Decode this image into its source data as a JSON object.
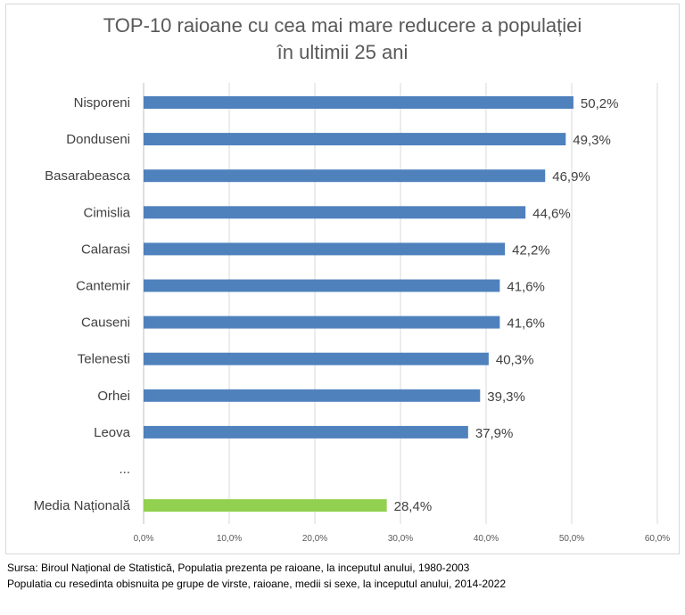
{
  "chart_data": {
    "type": "bar",
    "orientation": "horizontal",
    "title_line1": "TOP-10 raioane cu cea mai mare reducere a populației",
    "title_line2": "în ultimii 25 ani",
    "categories": [
      "Nisporeni",
      "Donduseni",
      "Basarabeasca",
      "Cimislia",
      "Calarasi",
      "Cantemir",
      "Causeni",
      "Telenesti",
      "Orhei",
      "Leova",
      "...",
      "Media Națională"
    ],
    "values": [
      50.2,
      49.3,
      46.9,
      44.6,
      42.2,
      41.6,
      41.6,
      40.3,
      39.3,
      37.9,
      null,
      28.4
    ],
    "value_labels": [
      "50,2%",
      "49,3%",
      "46,9%",
      "44,6%",
      "42,2%",
      "41,6%",
      "41,6%",
      "40,3%",
      "39,3%",
      "37,9%",
      "",
      "28,4%"
    ],
    "bar_colors": [
      "#4f81bd",
      "#4f81bd",
      "#4f81bd",
      "#4f81bd",
      "#4f81bd",
      "#4f81bd",
      "#4f81bd",
      "#4f81bd",
      "#4f81bd",
      "#4f81bd",
      "#4f81bd",
      "#92d050"
    ],
    "xlim": [
      0,
      60
    ],
    "x_ticks": [
      0,
      10,
      20,
      30,
      40,
      50,
      60
    ],
    "x_tick_labels": [
      "0,0%",
      "10,0%",
      "20,0%",
      "30,0%",
      "40,0%",
      "50,0%",
      "60,0%"
    ],
    "grid": true,
    "legend": "none"
  },
  "source": {
    "line1": "Sursa: Biroul Național de Statistică, Populatia prezenta pe raioane, la inceputul anului, 1980-2003",
    "line2": "Populatia cu resedinta obisnuita pe grupe de virste, raioane, medii si sexe, la inceputul anului, 2014-2022"
  }
}
